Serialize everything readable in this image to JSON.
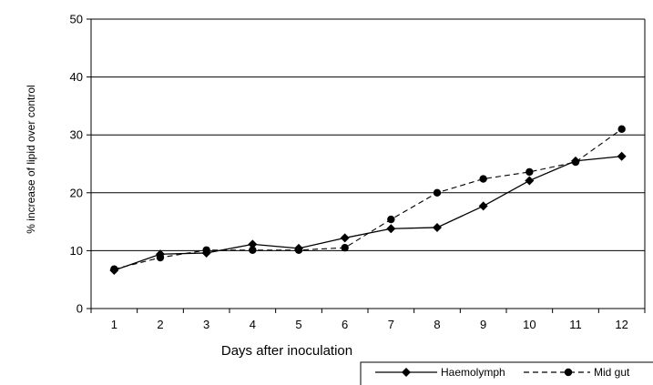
{
  "chart_data": {
    "type": "line",
    "title": "",
    "xlabel": "Days after inoculation",
    "ylabel": "% increase of lipid over control",
    "x": [
      "1",
      "2",
      "3",
      "4",
      "5",
      "6",
      "7",
      "8",
      "9",
      "10",
      "11",
      "12"
    ],
    "ylim": [
      0,
      50
    ],
    "yticks": [
      "0",
      "10",
      "20",
      "30",
      "40",
      "50"
    ],
    "grid": "horizontal",
    "legend_position": "bottom-right",
    "series": [
      {
        "name": "Haemolymph",
        "marker": "diamond",
        "line_style": "solid",
        "color": "#000000",
        "values": [
          6.6,
          9.4,
          9.6,
          11.1,
          10.4,
          12.2,
          13.8,
          14.0,
          17.7,
          22.1,
          25.5,
          26.3
        ]
      },
      {
        "name": "Mid gut",
        "marker": "circle",
        "line_style": "dashed",
        "color": "#000000",
        "values": [
          6.8,
          8.8,
          10.1,
          10.1,
          10.1,
          10.5,
          15.4,
          20.0,
          22.4,
          23.6,
          25.3,
          31.0
        ]
      }
    ]
  }
}
